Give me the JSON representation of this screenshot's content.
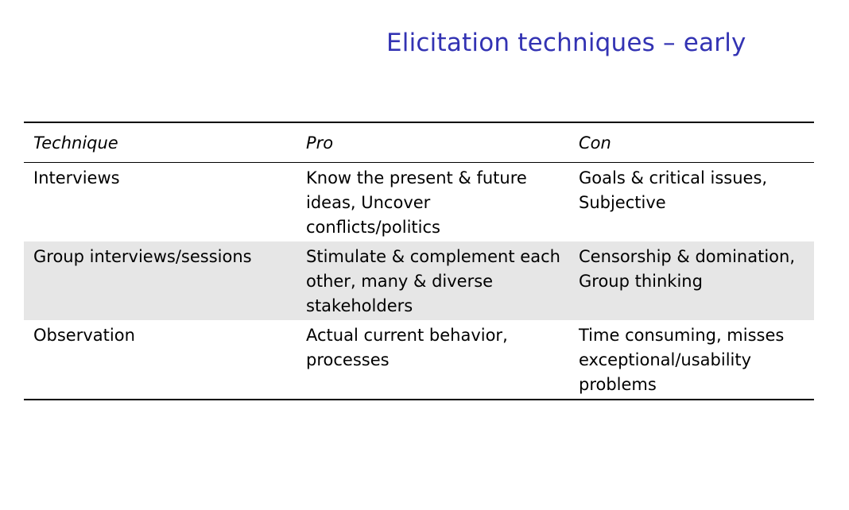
{
  "title": "Elicitation techniques – early",
  "table": {
    "headers": [
      "Technique",
      "Pro",
      "Con"
    ],
    "rows": [
      [
        "Interviews",
        "Know the present & future ideas, Uncover conflicts/politics",
        "Goals & critical issues, Subjective"
      ],
      [
        "Group interviews/sessions",
        "Stimulate & complement each other, many & diverse stakeholders",
        "Censorship & domination, Group thinking"
      ],
      [
        "Observation",
        "Actual current behavior, processes",
        "Time consuming, misses exceptional/usability problems"
      ]
    ]
  },
  "colors": {
    "title": "#3333b3",
    "row_shade": "#e6e6e6"
  }
}
